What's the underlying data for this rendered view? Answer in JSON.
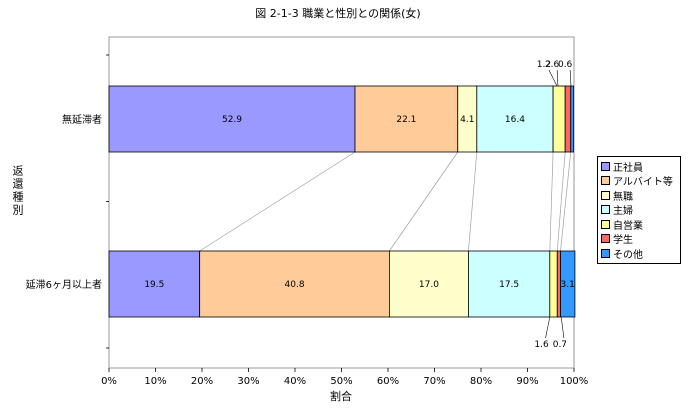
{
  "chart_data": {
    "type": "bar",
    "orientation": "horizontal",
    "stacked": "percent",
    "title": "図 2-1-3  職業と性別との関係(女)",
    "xlabel": "割合",
    "ylabel": "返還種別",
    "xlim": [
      0,
      100
    ],
    "xticks": [
      "0%",
      "10%",
      "20%",
      "30%",
      "40%",
      "50%",
      "60%",
      "70%",
      "80%",
      "90%",
      "100%"
    ],
    "categories": [
      "無延滞者",
      "延滞6ヶ月以上者"
    ],
    "series": [
      {
        "name": "正社員",
        "color": "#9999ff",
        "values": [
          52.9,
          19.5
        ]
      },
      {
        "name": "アルバイト等",
        "color": "#ffcc99",
        "values": [
          22.1,
          40.8
        ]
      },
      {
        "name": "無職",
        "color": "#ffffcc",
        "values": [
          4.1,
          17.0
        ]
      },
      {
        "name": "主婦",
        "color": "#ccffff",
        "values": [
          16.4,
          17.5
        ]
      },
      {
        "name": "自営業",
        "color": "#ffff99",
        "values": [
          2.6,
          1.6
        ]
      },
      {
        "name": "学生",
        "color": "#ff6666",
        "values": [
          1.2,
          0.7
        ]
      },
      {
        "name": "その他",
        "color": "#3399ff",
        "values": [
          0.6,
          3.1
        ]
      }
    ],
    "data_labels": [
      [
        "52.9",
        "22.1",
        "4.1",
        "16.4",
        "2.6",
        "1.2",
        "0.6"
      ],
      [
        "19.5",
        "40.8",
        "17.0",
        "17.5",
        "1.6",
        "0.7",
        "3.1"
      ]
    ],
    "series_lines": true,
    "legend": "right",
    "grid": false
  }
}
